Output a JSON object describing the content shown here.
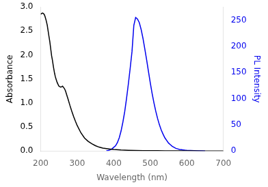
{
  "chart_data": {
    "type": "line",
    "xlabel": "Wavelength (nm)",
    "ylabel": "Absorbance",
    "y2label": "PL Intensity",
    "xlim": [
      200,
      700
    ],
    "xticks": [
      200,
      300,
      400,
      500,
      600,
      700
    ],
    "ylim": [
      0,
      3.0
    ],
    "yticks": [
      {
        "value": 0.0,
        "label": "0.0"
      },
      0.5,
      {
        "value": 1.0,
        "label": "1.0"
      },
      1.5,
      {
        "value": 2.0,
        "label": "2.0"
      },
      2.5,
      {
        "value": 3.0,
        "label": "3.0"
      }
    ],
    "y2lim": [
      0,
      275
    ],
    "y2ticks": [
      0,
      50,
      100,
      150,
      200,
      250
    ],
    "grid": false,
    "series": [
      {
        "color": "#000000",
        "x": [
          200,
          202,
          204,
          206,
          208,
          210,
          212,
          215,
          218,
          220,
          222,
          225,
          228,
          230,
          232,
          235,
          238,
          240,
          242,
          245,
          248,
          250,
          252,
          255,
          258,
          260,
          262,
          265,
          268,
          270,
          272,
          275,
          280,
          285,
          290,
          295,
          300,
          310,
          320,
          330,
          340,
          350,
          360,
          370,
          380,
          390,
          400,
          420,
          440,
          460,
          480,
          500,
          520,
          540,
          560,
          580,
          600,
          620,
          640,
          660,
          680,
          700
        ],
        "values": [
          2.85,
          2.86,
          2.87,
          2.87,
          2.86,
          2.84,
          2.8,
          2.72,
          2.62,
          2.52,
          2.42,
          2.28,
          2.1,
          1.98,
          1.9,
          1.75,
          1.62,
          1.55,
          1.5,
          1.43,
          1.38,
          1.35,
          1.34,
          1.33,
          1.34,
          1.35,
          1.33,
          1.3,
          1.25,
          1.2,
          1.15,
          1.08,
          0.95,
          0.83,
          0.72,
          0.62,
          0.53,
          0.38,
          0.27,
          0.2,
          0.15,
          0.11,
          0.08,
          0.06,
          0.05,
          0.04,
          0.03,
          0.02,
          0.015,
          0.01,
          0.008,
          0.006,
          0.005,
          0.004,
          0.003,
          0.003,
          0.002,
          0.002,
          0.001,
          0.001,
          0.001,
          0.001
        ]
      },
      {
        "color": "#0000ee",
        "axis": "y2",
        "x": [
          380,
          385,
          390,
          395,
          400,
          405,
          410,
          415,
          420,
          425,
          430,
          435,
          440,
          445,
          450,
          455,
          460,
          465,
          470,
          475,
          480,
          485,
          490,
          495,
          500,
          505,
          510,
          515,
          520,
          525,
          530,
          535,
          540,
          545,
          550,
          555,
          560,
          565,
          570,
          575,
          580,
          585,
          590,
          595,
          600,
          605,
          610,
          620,
          630,
          640,
          650
        ],
        "values": [
          0.5,
          1,
          2,
          4,
          7,
          10,
          16,
          25,
          38,
          55,
          75,
          100,
          128,
          158,
          190,
          240,
          255,
          252,
          245,
          232,
          215,
          195,
          174,
          152,
          130,
          110,
          92,
          76,
          62,
          50,
          40,
          32,
          25,
          20,
          15,
          12,
          9,
          7,
          5,
          4,
          3,
          2.5,
          2,
          1.5,
          1.2,
          1,
          0.8,
          0.5,
          0.3,
          0.1,
          0.05
        ]
      }
    ]
  }
}
